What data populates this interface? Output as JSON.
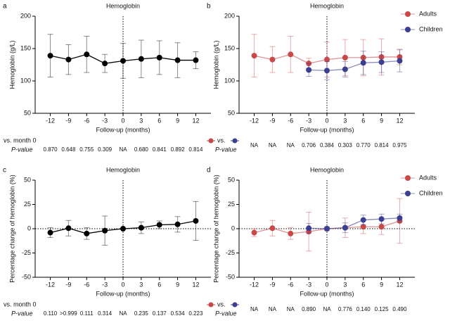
{
  "chart_data": [
    {
      "type": "line",
      "panel_label": "a",
      "title": "Hemoglobin",
      "x_label": "Follow-up (months)",
      "y_label": "Hemoglobin (g/L)",
      "x": [
        -12,
        -9,
        -6,
        -3,
        0,
        3,
        6,
        9,
        12
      ],
      "xlim": [
        -14.5,
        14.5
      ],
      "xticks": [
        -12,
        -9,
        -6,
        -3,
        0,
        3,
        6,
        9,
        12
      ],
      "ylim": [
        50,
        200
      ],
      "yticks": [
        50,
        100,
        150,
        200
      ],
      "vline_x": 0,
      "zero_line": false,
      "series": [
        {
          "color": "#000000",
          "values": [
            139,
            133,
            141,
            127,
            131,
            134,
            136,
            132,
            132
          ],
          "errors": [
            33,
            23,
            28,
            14,
            27,
            29,
            26,
            27,
            13
          ]
        }
      ],
      "comparison_label": "vs. month 0",
      "pvalue_label": "P-value",
      "p_values": [
        "0.870",
        "0.648",
        "0.755",
        "0.309",
        "NA",
        "0.680",
        "0.841",
        "0.892",
        "0.814"
      ]
    },
    {
      "type": "line",
      "panel_label": "b",
      "title": "Hemoglobin",
      "x_label": "Follow-up (months)",
      "y_label": "Hemoglobin (g/L)",
      "x": [
        -12,
        -9,
        -6,
        -3,
        0,
        3,
        6,
        9,
        12
      ],
      "xlim": [
        -14.5,
        14.5
      ],
      "xticks": [
        -12,
        -9,
        -6,
        -3,
        0,
        3,
        6,
        9,
        12
      ],
      "ylim": [
        50,
        200
      ],
      "yticks": [
        50,
        100,
        150,
        200
      ],
      "vline_x": 0,
      "zero_line": false,
      "legend": "upper right",
      "series": [
        {
          "name": "Adults",
          "color": "#c9494b",
          "values": [
            139,
            133,
            141,
            127,
            133,
            136,
            136,
            137,
            137
          ],
          "errors": [
            33,
            20,
            28,
            8,
            27,
            28,
            28,
            28,
            12
          ]
        },
        {
          "name": "Children",
          "color": "#3b3f91",
          "values": [
            null,
            null,
            null,
            117,
            116,
            118,
            128,
            129,
            131
          ],
          "errors": [
            null,
            null,
            null,
            10,
            14,
            12,
            18,
            16,
            17
          ]
        }
      ],
      "comparison_label": "vs.",
      "pvalue_label": "P-value",
      "p_values": [
        "NA",
        "NA",
        "NA",
        "0.706",
        "0.384",
        "0.303",
        "0.770",
        "0.814",
        "0.975"
      ]
    },
    {
      "type": "line",
      "panel_label": "c",
      "title": "Hemoglobin",
      "x_label": "Follow-up (months)",
      "y_label": "Percentage change of hemoglobin (%)",
      "x": [
        -12,
        -9,
        -6,
        -3,
        0,
        3,
        6,
        9,
        12
      ],
      "xlim": [
        -14.5,
        14.5
      ],
      "xticks": [
        -12,
        -9,
        -6,
        -3,
        0,
        3,
        6,
        9,
        12
      ],
      "ylim": [
        -50,
        50
      ],
      "yticks": [
        -50,
        -25,
        0,
        25,
        50
      ],
      "vline_x": 0,
      "zero_line": true,
      "series": [
        {
          "color": "#000000",
          "values": [
            -4,
            0.5,
            -5,
            -2,
            0,
            1,
            4,
            4.5,
            8
          ],
          "errors": [
            5,
            8,
            6,
            15,
            0,
            6,
            4,
            8,
            20
          ]
        }
      ],
      "comparison_label": "vs. month 0",
      "pvalue_label": "P-value",
      "p_values": [
        "0.110",
        ">0.999",
        "0.111",
        "0.314",
        "NA",
        "0.235",
        "0.137",
        "0.534",
        "0.223"
      ]
    },
    {
      "type": "line",
      "panel_label": "d",
      "title": "Hemoglobin",
      "x_label": "Follow-up (months)",
      "y_label": "Percentage change of hemoglobin (%)",
      "x": [
        -12,
        -9,
        -6,
        -3,
        0,
        3,
        6,
        9,
        12
      ],
      "xlim": [
        -14.5,
        14.5
      ],
      "xticks": [
        -12,
        -9,
        -6,
        -3,
        0,
        3,
        6,
        9,
        12
      ],
      "ylim": [
        -50,
        50
      ],
      "yticks": [
        -50,
        -25,
        0,
        25,
        50
      ],
      "vline_x": 0,
      "zero_line": true,
      "legend": "upper right",
      "series": [
        {
          "name": "Adults",
          "color": "#c9494b",
          "values": [
            -4,
            0.5,
            -5,
            -3,
            0,
            1,
            2,
            2,
            8
          ],
          "errors": [
            4,
            8,
            6,
            20,
            0,
            10,
            7,
            8,
            23
          ]
        },
        {
          "name": "Children",
          "color": "#3b3f91",
          "values": [
            null,
            null,
            null,
            0.5,
            0,
            1,
            9,
            10,
            11
          ],
          "errors": [
            null,
            null,
            null,
            5,
            2,
            5,
            5,
            5,
            4
          ]
        }
      ],
      "comparison_label": "vs.",
      "pvalue_label": "P-value",
      "p_values": [
        "NA",
        "NA",
        "NA",
        "0.890",
        "NA",
        "0.776",
        "0.140",
        "0.125",
        "0.490"
      ]
    }
  ]
}
